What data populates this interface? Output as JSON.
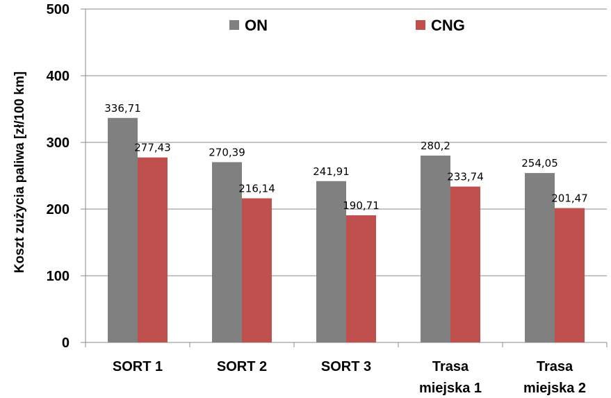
{
  "chart_data": {
    "type": "bar",
    "ylabel": "Koszt zużycia paliwa [zł/100 km]",
    "xlabel": "",
    "ylim": [
      0,
      500
    ],
    "yticks": [
      "0",
      "100",
      "200",
      "300",
      "400",
      "500"
    ],
    "grid": true,
    "legend_position": "top",
    "categories": [
      [
        "SORT 1"
      ],
      [
        "SORT 2"
      ],
      [
        "SORT 3"
      ],
      [
        "Trasa",
        "miejska 1"
      ],
      [
        "Trasa",
        "miejska 2"
      ]
    ],
    "series": [
      {
        "name": "ON",
        "color": "#808080",
        "values": [
          336.71,
          270.39,
          241.91,
          280.2,
          254.05
        ],
        "labels": [
          "336,71",
          "270,39",
          "241,91",
          "280,2",
          "254,05"
        ]
      },
      {
        "name": "CNG",
        "color": "#c0504d",
        "values": [
          277.43,
          216.14,
          190.71,
          233.74,
          201.47
        ],
        "labels": [
          "277,43",
          "216,14",
          "190,71",
          "233,74",
          "201,47"
        ]
      }
    ]
  }
}
